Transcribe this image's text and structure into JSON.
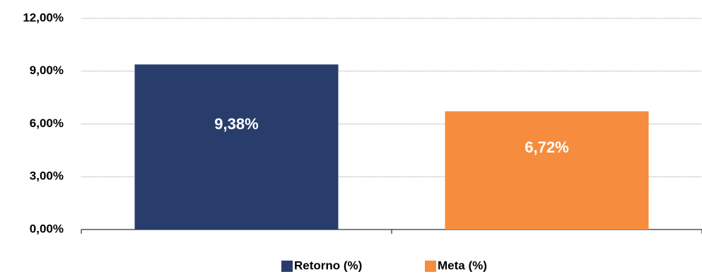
{
  "chart_data": {
    "type": "bar",
    "categories": [
      "Retorno (%)",
      "Meta (%)"
    ],
    "values": [
      9.38,
      6.72
    ],
    "value_labels": [
      "9,38%",
      "6,72%"
    ],
    "colors": [
      "#283d6b",
      "#f68c3d"
    ],
    "ylim": [
      0,
      12
    ],
    "yticks": [
      {
        "value": 0,
        "label": "0,00%"
      },
      {
        "value": 3,
        "label": "3,00%"
      },
      {
        "value": 6,
        "label": "6,00%"
      },
      {
        "value": 9,
        "label": "9,00%"
      },
      {
        "value": 12,
        "label": "12,00%"
      }
    ],
    "grid": true,
    "legend": "bottom"
  }
}
